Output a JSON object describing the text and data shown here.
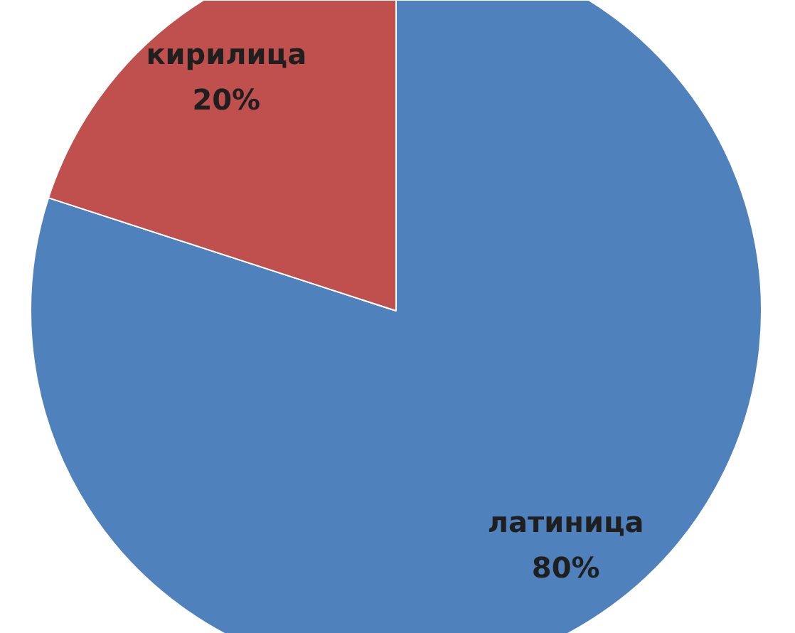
{
  "chart_data": {
    "type": "pie",
    "categories": [
      "латиница",
      "кирилица"
    ],
    "values": [
      80,
      20
    ],
    "colors": [
      "#4f81bd",
      "#c0504d"
    ],
    "value_labels": [
      "80%",
      "20%"
    ]
  }
}
